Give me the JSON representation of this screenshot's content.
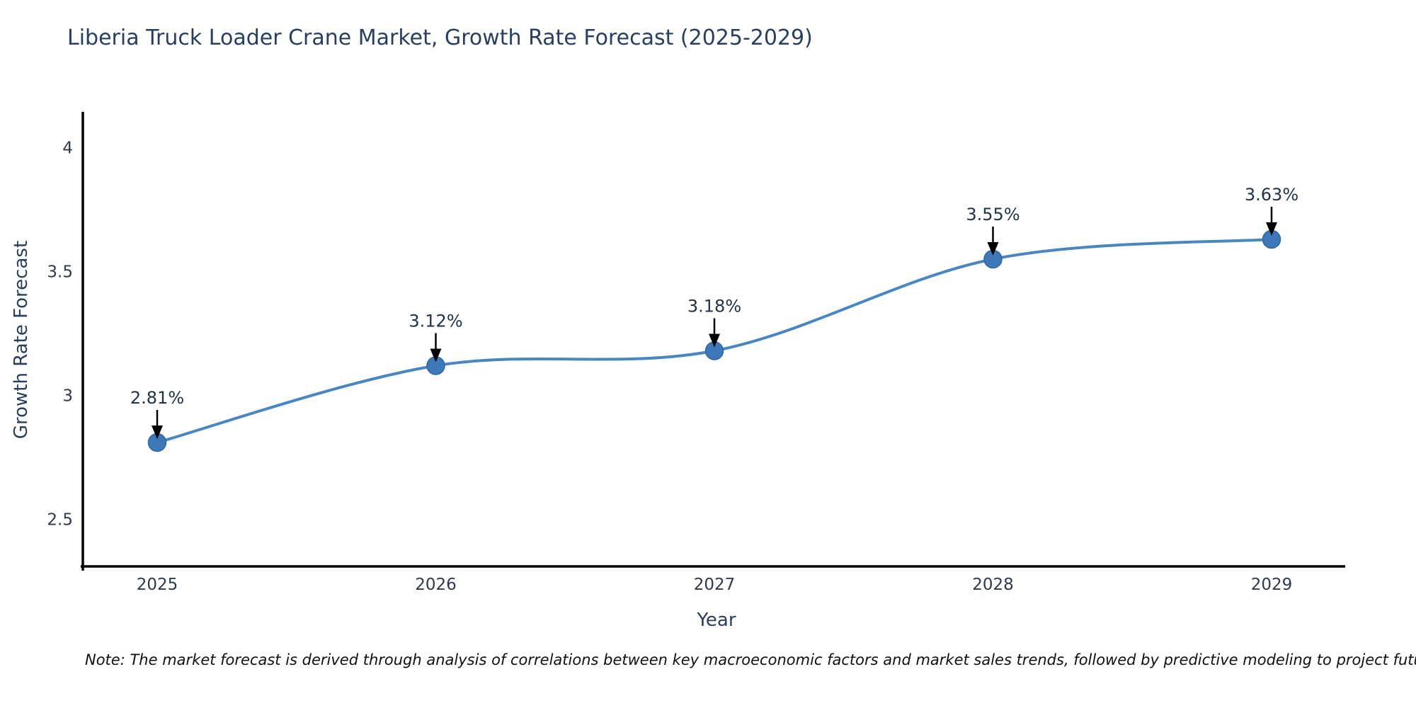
{
  "title": "Liberia Truck Loader Crane Market, Growth Rate Forecast (2025-2029)",
  "note": "Note: The market forecast is derived through analysis of correlations between key macroeconomic factors and market sales trends, followed by predictive modeling to project future sales",
  "chart_data": {
    "type": "line",
    "title": "Liberia Truck Loader Crane Market, Growth Rate Forecast (2025-2029)",
    "categories": [
      "2025",
      "2026",
      "2027",
      "2028",
      "2029"
    ],
    "series": [
      {
        "name": "Growth Rate Forecast",
        "values": [
          2.81,
          3.12,
          3.18,
          3.55,
          3.63
        ]
      }
    ],
    "point_labels": [
      "2.81%",
      "3.12%",
      "3.18%",
      "3.55%",
      "3.63%"
    ],
    "xlabel": "Year",
    "ylabel": "Growth Rate Forecast",
    "y_ticks": [
      2.5,
      3,
      3.5,
      4
    ],
    "ylim": [
      2.31,
      4.14
    ],
    "grid": false,
    "legend_position": "none",
    "line_shape": "spline",
    "annotation_style": "value label with downward arrow onto each point",
    "colors": {
      "line": "#4a86c2",
      "marker": "#3d79b8",
      "marker_edge": "#31669e",
      "arrow": "#000000",
      "spine": "#000000",
      "title_text": "#2a3f5f",
      "axis_text": "#2f3b4c",
      "annotation_text": "#233447"
    }
  }
}
